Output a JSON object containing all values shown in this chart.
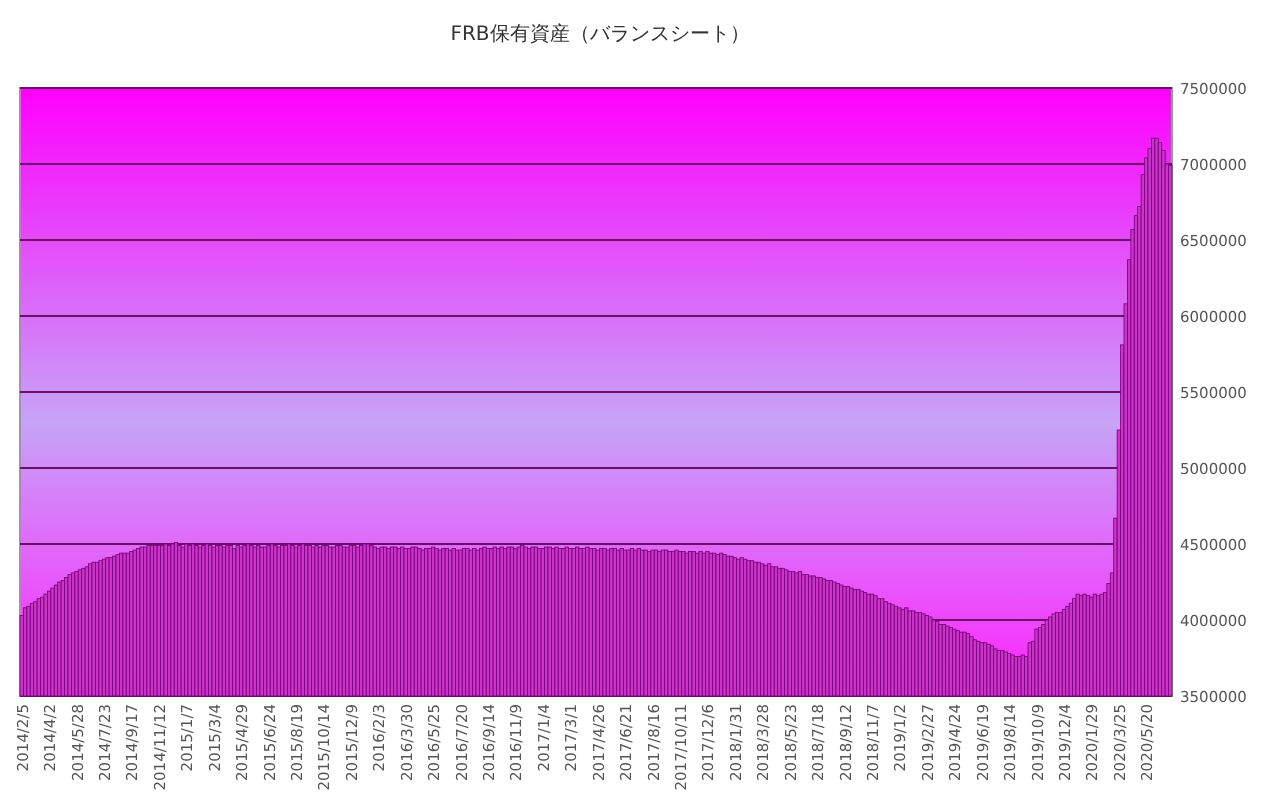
{
  "chart_data": {
    "type": "bar",
    "title": "FRB保有資産（バランスシート）",
    "categories": [
      "2014/2/5",
      null,
      null,
      null,
      null,
      null,
      null,
      null,
      "2014/4/2",
      null,
      null,
      null,
      null,
      null,
      null,
      null,
      "2014/5/28",
      null,
      null,
      null,
      null,
      null,
      null,
      null,
      "2014/7/23",
      null,
      null,
      null,
      null,
      null,
      null,
      null,
      "2014/9/17",
      null,
      null,
      null,
      null,
      null,
      null,
      null,
      "2014/11/12",
      null,
      null,
      null,
      null,
      null,
      null,
      null,
      "2015/1/7",
      null,
      null,
      null,
      null,
      null,
      null,
      null,
      "2015/3/4",
      null,
      null,
      null,
      null,
      null,
      null,
      null,
      "2015/4/29",
      null,
      null,
      null,
      null,
      null,
      null,
      null,
      "2015/6/24",
      null,
      null,
      null,
      null,
      null,
      null,
      null,
      "2015/8/19",
      null,
      null,
      null,
      null,
      null,
      null,
      null,
      "2015/10/14",
      null,
      null,
      null,
      null,
      null,
      null,
      null,
      "2015/12/9",
      null,
      null,
      null,
      null,
      null,
      null,
      null,
      "2016/2/3",
      null,
      null,
      null,
      null,
      null,
      null,
      null,
      "2016/3/30",
      null,
      null,
      null,
      null,
      null,
      null,
      null,
      "2016/5/25",
      null,
      null,
      null,
      null,
      null,
      null,
      null,
      "2016/7/20",
      null,
      null,
      null,
      null,
      null,
      null,
      null,
      "2016/9/14",
      null,
      null,
      null,
      null,
      null,
      null,
      null,
      "2016/11/9",
      null,
      null,
      null,
      null,
      null,
      null,
      null,
      "2017/1/4",
      null,
      null,
      null,
      null,
      null,
      null,
      null,
      "2017/3/1",
      null,
      null,
      null,
      null,
      null,
      null,
      null,
      "2017/4/26",
      null,
      null,
      null,
      null,
      null,
      null,
      null,
      "2017/6/21",
      null,
      null,
      null,
      null,
      null,
      null,
      null,
      "2017/8/16",
      null,
      null,
      null,
      null,
      null,
      null,
      null,
      "2017/10/11",
      null,
      null,
      null,
      null,
      null,
      null,
      null,
      "2017/12/6",
      null,
      null,
      null,
      null,
      null,
      null,
      null,
      "2018/1/31",
      null,
      null,
      null,
      null,
      null,
      null,
      null,
      "2018/3/28",
      null,
      null,
      null,
      null,
      null,
      null,
      null,
      "2018/5/23",
      null,
      null,
      null,
      null,
      null,
      null,
      null,
      "2018/7/18",
      null,
      null,
      null,
      null,
      null,
      null,
      null,
      "2018/9/12",
      null,
      null,
      null,
      null,
      null,
      null,
      null,
      "2018/11/7",
      null,
      null,
      null,
      null,
      null,
      null,
      null,
      "2019/1/2",
      null,
      null,
      null,
      null,
      null,
      null,
      null,
      "2019/2/27",
      null,
      null,
      null,
      null,
      null,
      null,
      null,
      "2019/4/24",
      null,
      null,
      null,
      null,
      null,
      null,
      null,
      "2019/6/19",
      null,
      null,
      null,
      null,
      null,
      null,
      null,
      "2019/8/14",
      null,
      null,
      null,
      null,
      null,
      null,
      null,
      "2019/10/9",
      null,
      null,
      null,
      null,
      null,
      null,
      null,
      "2019/12/4",
      null,
      null,
      null,
      null,
      null,
      null,
      null,
      "2020/1/29",
      null,
      null,
      null,
      null,
      null,
      null,
      null,
      "2020/3/25",
      null,
      null,
      null,
      null,
      null,
      null,
      null,
      "2020/5/20",
      null,
      null,
      null,
      null,
      null,
      null,
      null
    ],
    "values": [
      4030000,
      4080000,
      4090000,
      4110000,
      4120000,
      4140000,
      4150000,
      4170000,
      4190000,
      4210000,
      4230000,
      4250000,
      4260000,
      4280000,
      4300000,
      4310000,
      4320000,
      4330000,
      4340000,
      4350000,
      4370000,
      4380000,
      4380000,
      4390000,
      4400000,
      4410000,
      4410000,
      4420000,
      4430000,
      4440000,
      4440000,
      4440000,
      4450000,
      4460000,
      4470000,
      4480000,
      4480000,
      4490000,
      4490000,
      4490000,
      4490000,
      4490000,
      4500000,
      4490000,
      4500000,
      4510000,
      4490000,
      4480000,
      4500000,
      4490000,
      4500000,
      4490000,
      4480000,
      4490000,
      4500000,
      4490000,
      4480000,
      4490000,
      4490000,
      4480000,
      4490000,
      4490000,
      4470000,
      4490000,
      4480000,
      4490000,
      4500000,
      4490000,
      4480000,
      4490000,
      4480000,
      4480000,
      4490000,
      4500000,
      4490000,
      4480000,
      4490000,
      4490000,
      4500000,
      4490000,
      4480000,
      4490000,
      4500000,
      4490000,
      4490000,
      4480000,
      4490000,
      4480000,
      4490000,
      4490000,
      4480000,
      4480000,
      4490000,
      4490000,
      4480000,
      4480000,
      4490000,
      4490000,
      4480000,
      4490000,
      4500000,
      4500000,
      4490000,
      4480000,
      4470000,
      4480000,
      4480000,
      4470000,
      4480000,
      4480000,
      4470000,
      4480000,
      4470000,
      4470000,
      4480000,
      4480000,
      4470000,
      4460000,
      4470000,
      4470000,
      4480000,
      4470000,
      4460000,
      4470000,
      4470000,
      4460000,
      4470000,
      4460000,
      4460000,
      4470000,
      4470000,
      4460000,
      4470000,
      4460000,
      4470000,
      4480000,
      4470000,
      4470000,
      4480000,
      4470000,
      4480000,
      4470000,
      4480000,
      4480000,
      4470000,
      4480000,
      4490000,
      4480000,
      4470000,
      4480000,
      4480000,
      4470000,
      4470000,
      4480000,
      4480000,
      4470000,
      4480000,
      4470000,
      4470000,
      4480000,
      4470000,
      4470000,
      4480000,
      4470000,
      4470000,
      4480000,
      4470000,
      4470000,
      4460000,
      4470000,
      4470000,
      4460000,
      4470000,
      4470000,
      4460000,
      4470000,
      4460000,
      4460000,
      4470000,
      4460000,
      4470000,
      4460000,
      4460000,
      4450000,
      4460000,
      4460000,
      4450000,
      4460000,
      4460000,
      4450000,
      4450000,
      4460000,
      4450000,
      4450000,
      4440000,
      4450000,
      4450000,
      4440000,
      4450000,
      4440000,
      4450000,
      4440000,
      4440000,
      4430000,
      4440000,
      4430000,
      4420000,
      4420000,
      4410000,
      4400000,
      4410000,
      4400000,
      4390000,
      4390000,
      4380000,
      4380000,
      4370000,
      4360000,
      4370000,
      4350000,
      4350000,
      4340000,
      4340000,
      4330000,
      4320000,
      4320000,
      4310000,
      4320000,
      4300000,
      4300000,
      4290000,
      4290000,
      4280000,
      4280000,
      4270000,
      4260000,
      4260000,
      4250000,
      4240000,
      4230000,
      4220000,
      4220000,
      4210000,
      4200000,
      4200000,
      4190000,
      4180000,
      4170000,
      4170000,
      4160000,
      4140000,
      4140000,
      4120000,
      4110000,
      4100000,
      4090000,
      4080000,
      4070000,
      4080000,
      4060000,
      4060000,
      4050000,
      4050000,
      4040000,
      4030000,
      4020000,
      4000000,
      3990000,
      3970000,
      3970000,
      3960000,
      3950000,
      3940000,
      3930000,
      3920000,
      3920000,
      3910000,
      3890000,
      3870000,
      3860000,
      3850000,
      3850000,
      3840000,
      3830000,
      3810000,
      3800000,
      3800000,
      3790000,
      3780000,
      3770000,
      3760000,
      3760000,
      3770000,
      3760000,
      3850000,
      3860000,
      3940000,
      3950000,
      3970000,
      4000000,
      4020000,
      4040000,
      4050000,
      4050000,
      4070000,
      4090000,
      4110000,
      4140000,
      4170000,
      4160000,
      4170000,
      4160000,
      4150000,
      4170000,
      4160000,
      4170000,
      4180000,
      4240000,
      4310000,
      4670000,
      5250000,
      5810000,
      6080000,
      6370000,
      6570000,
      6660000,
      6720000,
      6930000,
      7040000,
      7100000,
      7170000,
      7170000,
      7140000,
      7090000,
      7000000,
      6990000
    ],
    "color": "#cc33cc",
    "ylim": [
      3500000,
      7500000
    ],
    "yticks": [
      3500000,
      4000000,
      4500000,
      5000000,
      5500000,
      6000000,
      6500000,
      7000000,
      7500000
    ],
    "grid": "y"
  }
}
